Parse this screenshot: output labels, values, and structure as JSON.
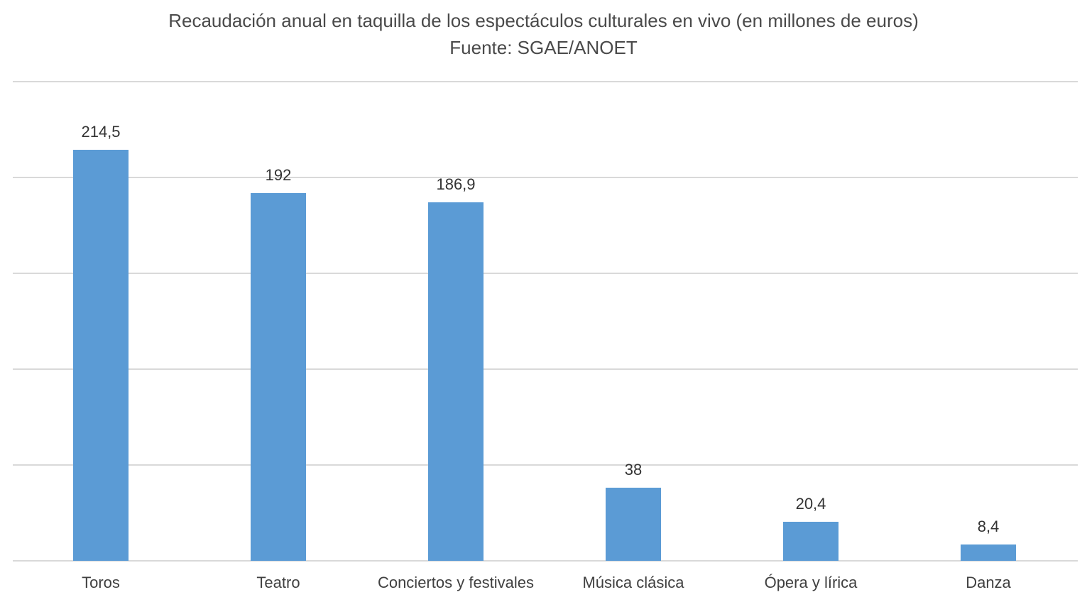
{
  "chart_data": {
    "type": "bar",
    "title": "Recaudación anual en taquilla de los espectáculos culturales en vivo (en millones de euros)",
    "subtitle": "Fuente: SGAE/ANOET",
    "categories": [
      "Toros",
      "Teatro",
      "Conciertos y festivales",
      "Música clásica",
      "Ópera y  lírica",
      "Danza"
    ],
    "values": [
      214.5,
      192,
      186.9,
      38,
      20.4,
      8.4
    ],
    "value_labels": [
      "214,5",
      "192",
      "186,9",
      "38",
      "20,4",
      "8,4"
    ],
    "xlabel": "",
    "ylabel": "",
    "ylim": [
      0,
      250
    ],
    "yticks": [
      0,
      50,
      100,
      150,
      200,
      250
    ],
    "grid": true,
    "legend": null,
    "bar_color": "#5b9bd5",
    "grid_color": "#d9d9d9"
  }
}
